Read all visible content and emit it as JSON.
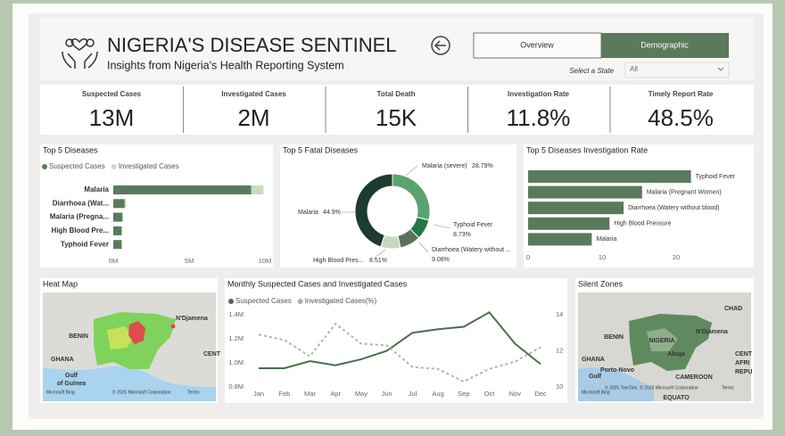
{
  "header": {
    "title": "NIGERIA'S DISEASE SENTINEL",
    "subtitle": "Insights from Nigeria's Health Reporting System"
  },
  "tabs": [
    "Overview",
    "Demographic"
  ],
  "filter": {
    "label": "Select a State",
    "value": "All"
  },
  "kpis": [
    {
      "label": "Suspected Cases",
      "value": "13M"
    },
    {
      "label": "Investigated Cases",
      "value": "2M"
    },
    {
      "label": "Total Death",
      "value": "15K"
    },
    {
      "label": "Investigation Rate",
      "value": "11.8%"
    },
    {
      "label": "Timely Report Rate",
      "value": "48.5%"
    }
  ],
  "chart_data": [
    {
      "type": "bar",
      "orientation": "horizontal",
      "stacked": true,
      "title": "Top 5 Diseases",
      "categories": [
        "Malaria",
        "Diarrhoea (Wat...",
        "Malaria (Pregna...",
        "High Blood Pre...",
        "Typhoid Fever"
      ],
      "series": [
        {
          "name": "Suspected Cases",
          "color": "#5b7a5b",
          "values": [
            9.1,
            0.75,
            0.6,
            0.55,
            0.55
          ]
        },
        {
          "name": "Investigated Cases",
          "color": "#c8d9c2",
          "values": [
            0.8,
            0.1,
            0.06,
            0.05,
            0.05
          ]
        }
      ],
      "xlim": [
        0,
        10
      ],
      "xticks": [
        {
          "value": 0,
          "label": "0M"
        },
        {
          "value": 5,
          "label": "5M"
        },
        {
          "value": 10,
          "label": "10M"
        }
      ]
    },
    {
      "type": "pie",
      "donut": true,
      "title": "Top 5 Fatal Diseases",
      "categories": [
        "Malaria (severe)",
        "Typhoid Fever",
        "Diarrhoea (Watery without ...",
        "High Blood Pres...",
        "Malaria"
      ],
      "values": [
        28.79,
        8.73,
        9.08,
        8.51,
        44.9
      ],
      "value_labels": [
        "28.79%",
        "8.73%",
        "9.08%",
        "8.51%",
        "44.9%"
      ],
      "colors": [
        "#5aa36f",
        "#1f7a46",
        "#5d6f5d",
        "#c6d8c1",
        "#1d3b2e"
      ]
    },
    {
      "type": "bar",
      "orientation": "horizontal",
      "title": "Top 5 Diseases Investigation Rate",
      "categories": [
        "Typhoid Fever",
        "Malaria (Pregnant Women)",
        "Diarrhoea (Watery without blood)",
        "High Blood Pressure",
        "Malaria"
      ],
      "values": [
        22.0,
        15.4,
        12.9,
        11.0,
        8.6
      ],
      "color": "#5b7a5b",
      "xlim": [
        0,
        25
      ],
      "xticks": [
        0,
        10,
        20
      ]
    },
    {
      "type": "map",
      "title": "Heat Map",
      "labels": [
        "N'Djamena",
        "BENIN",
        "GHANA",
        "Gulf",
        "of Guinea",
        "CENT"
      ],
      "attribution": [
        "Microsoft Bing",
        "© 2025 Microsoft Corporation",
        "Terms"
      ]
    },
    {
      "type": "line",
      "title": "Monthly Suspected Cases and Investigated Cases",
      "categories": [
        "Jan",
        "Feb",
        "Mar",
        "Apr",
        "May",
        "Jun",
        "Jul",
        "Aug",
        "Sep",
        "Oct",
        "Nov",
        "Dec"
      ],
      "series": [
        {
          "name": "Suspected Cases",
          "color": "#4d6e4d",
          "line_style": "solid",
          "values": [
            0.956,
            0.956,
            1.015,
            0.98,
            1.03,
            1.1,
            1.25,
            1.28,
            1.3,
            1.42,
            1.16,
            0.99
          ]
        },
        {
          "name": "Investigated Cases(%)",
          "color": "#a9b9a1",
          "line_style": "dashed",
          "axis": "y2",
          "values": [
            12.9,
            12.6,
            11.7,
            13.5,
            12.4,
            12.3,
            11.1,
            11.0,
            10.3,
            11.0,
            11.4,
            12.2
          ]
        }
      ],
      "ylim": [
        0.8,
        1.4
      ],
      "yticks": [
        {
          "value": 0.8,
          "label": "0.8M"
        },
        {
          "value": 1.0,
          "label": "1.0M"
        },
        {
          "value": 1.2,
          "label": "1.2M"
        },
        {
          "value": 1.4,
          "label": "1.4M"
        }
      ],
      "y2lim": [
        10,
        14
      ],
      "y2ticks": [
        10,
        12,
        14
      ]
    },
    {
      "type": "map",
      "title": "Silent Zones",
      "labels": [
        "CHAD",
        "NIGERIA",
        "N'Djamena",
        "BENIN",
        "GHANA",
        "Porto-Novo",
        "Abuja",
        "CAMEROON",
        "CENT",
        "AFRI",
        "REPU",
        "Gulf",
        "EQUATO"
      ],
      "attribution": [
        "Microsoft Bing",
        "© 2025 TomTom, © 2025 Microsoft Corporation",
        "Terms"
      ]
    }
  ]
}
